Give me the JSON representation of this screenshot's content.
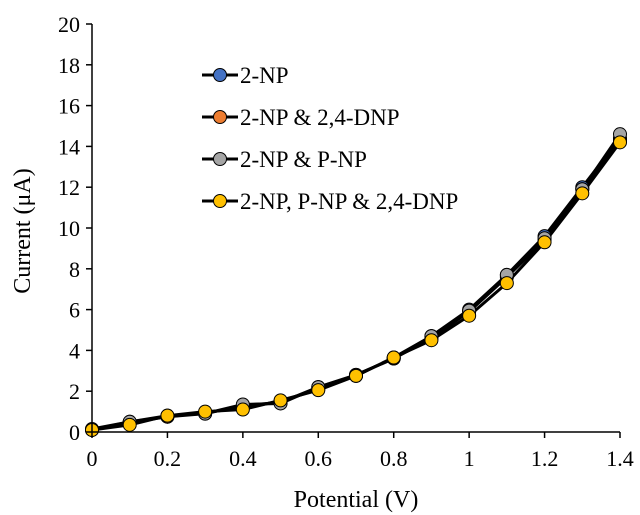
{
  "chart_data": {
    "type": "line",
    "xlabel": "Potential (V)",
    "ylabel": "Current (μA)",
    "xlim": [
      0,
      1.4
    ],
    "ylim": [
      0,
      20
    ],
    "x_ticks": [
      "0",
      "0.2",
      "0.4",
      "0.6",
      "0.8",
      "1",
      "1.2",
      "1.4"
    ],
    "x_tick_values": [
      0,
      0.2,
      0.4,
      0.6,
      0.8,
      1.0,
      1.2,
      1.4
    ],
    "y_ticks": [
      "0",
      "2",
      "4",
      "6",
      "8",
      "10",
      "12",
      "14",
      "16",
      "18",
      "20"
    ],
    "y_tick_values": [
      0,
      2,
      4,
      6,
      8,
      10,
      12,
      14,
      16,
      18,
      20
    ],
    "grid": false,
    "legend_position": "top-left",
    "x": [
      0,
      0.1,
      0.2,
      0.3,
      0.4,
      0.5,
      0.6,
      0.7,
      0.8,
      0.9,
      1.0,
      1.1,
      1.2,
      1.3,
      1.4
    ],
    "series": [
      {
        "name": "2-NP",
        "color": "#4472c4",
        "values": [
          0.1,
          0.5,
          0.75,
          0.9,
          1.3,
          1.45,
          2.2,
          2.8,
          3.6,
          4.7,
          6.0,
          7.7,
          9.6,
          12.0,
          14.4
        ]
      },
      {
        "name": "2-NP & 2,4-DNP",
        "color": "#ed7d31",
        "values": [
          0.1,
          0.45,
          0.75,
          0.95,
          1.2,
          1.5,
          2.1,
          2.8,
          3.6,
          4.6,
          5.9,
          7.6,
          9.4,
          11.9,
          14.3
        ]
      },
      {
        "name": "2-NP & P-NP",
        "color": "#a5a5a5",
        "values": [
          0.15,
          0.5,
          0.8,
          0.9,
          1.35,
          1.4,
          2.2,
          2.75,
          3.65,
          4.7,
          5.95,
          7.7,
          9.5,
          11.9,
          14.6
        ]
      },
      {
        "name": "2-NP, P-NP & 2,4-DNP",
        "color": "#ffc000",
        "values": [
          0.1,
          0.35,
          0.8,
          1.0,
          1.1,
          1.55,
          2.05,
          2.75,
          3.65,
          4.5,
          5.7,
          7.3,
          9.3,
          11.7,
          14.2
        ]
      }
    ]
  }
}
